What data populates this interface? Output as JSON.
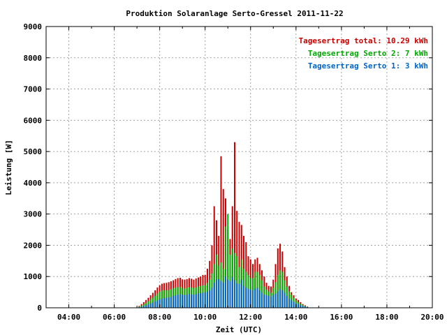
{
  "chart_data": {
    "type": "bar",
    "title": "Produktion Solaranlage Serto-Gressel 2011-11-22",
    "xlabel": "Zeit (UTC)",
    "ylabel": "Leistung [W]",
    "xlim": [
      "03:00",
      "20:00"
    ],
    "ylim": [
      0,
      9000
    ],
    "x_ticks": [
      "04:00",
      "06:00",
      "08:00",
      "10:00",
      "12:00",
      "14:00",
      "16:00",
      "18:00",
      "20:00"
    ],
    "y_ticks": [
      0,
      1000,
      2000,
      3000,
      4000,
      5000,
      6000,
      7000,
      8000,
      9000
    ],
    "grid": true,
    "stacked": true,
    "legend_position": "top-right",
    "legend": [
      {
        "label": "Tagesertrag total: 10.29 kWh",
        "color": "#cc0000"
      },
      {
        "label": "Tagesertrag Serto 2: 7 kWh",
        "color": "#00aa00"
      },
      {
        "label": "Tagesertrag Serto 1: 3 kWh",
        "color": "#0066cc"
      }
    ],
    "series": [
      {
        "name": "Serto 1",
        "color": "#0066cc",
        "values": [
          20,
          40,
          60,
          80,
          110,
          140,
          170,
          200,
          240,
          270,
          300,
          310,
          320,
          330,
          350,
          380,
          400,
          420,
          430,
          420,
          410,
          420,
          440,
          430,
          420,
          440,
          460,
          470,
          480,
          490,
          520,
          560,
          650,
          800,
          900,
          920,
          860,
          800,
          1000,
          900,
          850,
          980,
          880,
          780,
          760,
          900,
          700,
          650,
          600,
          580,
          560,
          620,
          640,
          560,
          480,
          420,
          400,
          380,
          360,
          420,
          450,
          520,
          600,
          560,
          480,
          380,
          300,
          240,
          190,
          150,
          120,
          90,
          60,
          40,
          20
        ]
      },
      {
        "name": "Serto 2",
        "color": "#00aa00",
        "values": [
          40,
          70,
          110,
          160,
          210,
          270,
          330,
          380,
          460,
          520,
          550,
          560,
          560,
          570,
          590,
          620,
          650,
          660,
          660,
          630,
          620,
          640,
          660,
          650,
          630,
          650,
          680,
          700,
          720,
          720,
          800,
          900,
          1100,
          1400,
          1700,
          1350,
          1450,
          1250,
          2600,
          3000,
          1700,
          1900,
          1750,
          1650,
          1300,
          1550,
          1250,
          1150,
          1050,
          950,
          950,
          1150,
          1150,
          1050,
          880,
          680,
          580,
          520,
          480,
          640,
          820,
          1050,
          1200,
          1150,
          880,
          680,
          530,
          420,
          320,
          240,
          180,
          130,
          90,
          60,
          30
        ]
      },
      {
        "name": "total",
        "color": "#cc0000",
        "values": [
          60,
          120,
          180,
          250,
          320,
          400,
          480,
          560,
          650,
          720,
          770,
          790,
          800,
          820,
          850,
          880,
          920,
          950,
          960,
          910,
          900,
          920,
          950,
          930,
          900,
          940,
          970,
          1000,
          1050,
          1050,
          1250,
          1500,
          2000,
          3250,
          2800,
          2300,
          4850,
          3800,
          3500,
          2500,
          2200,
          3250,
          5300,
          3100,
          2750,
          2650,
          2300,
          2100,
          1650,
          1550,
          1400,
          1550,
          1600,
          1400,
          1200,
          1000,
          800,
          700,
          680,
          900,
          1400,
          1900,
          2050,
          1800,
          1300,
          1000,
          700,
          500,
          400,
          300,
          250,
          180,
          120,
          80,
          40
        ]
      }
    ],
    "x_start_time": "07:06",
    "x_step_minutes": 6
  }
}
